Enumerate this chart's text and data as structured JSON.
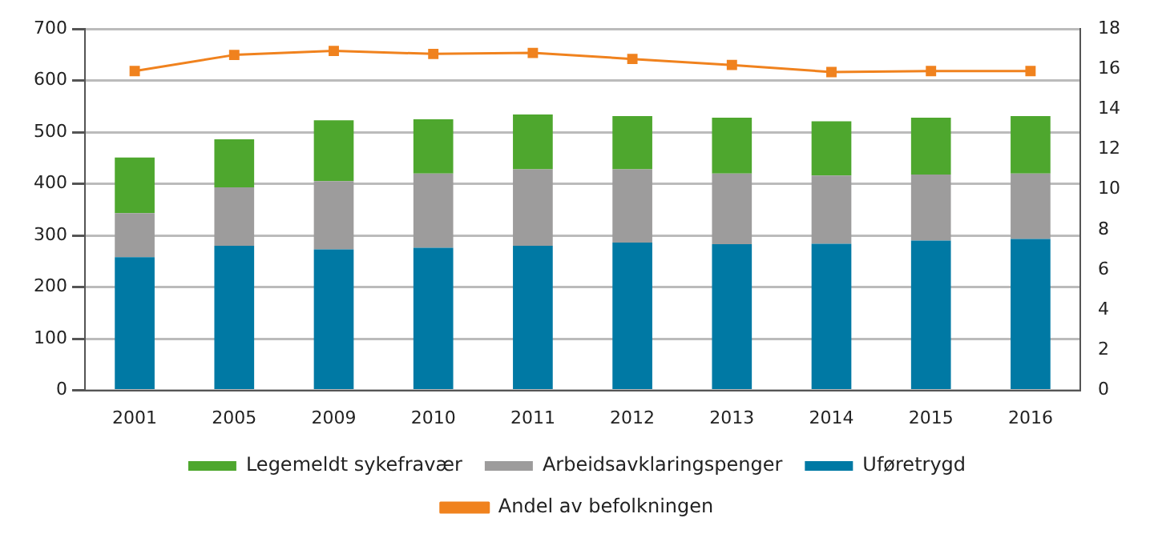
{
  "chart_data": {
    "type": "bar",
    "stacked": true,
    "categories": [
      "2001",
      "2005",
      "2009",
      "2010",
      "2011",
      "2012",
      "2013",
      "2014",
      "2015",
      "2016"
    ],
    "series": [
      {
        "name": "Uføretrygd",
        "color": "#0079a4",
        "values": [
          258,
          280,
          273,
          276,
          280,
          286,
          283,
          284,
          290,
          293
        ]
      },
      {
        "name": "Arbeidsavklaringspenger",
        "color": "#9d9c9c",
        "values": [
          85,
          113,
          132,
          144,
          148,
          142,
          137,
          132,
          128,
          127
        ]
      },
      {
        "name": "Legemeldt sykefravær",
        "color": "#4ea72e",
        "values": [
          108,
          93,
          118,
          105,
          106,
          103,
          108,
          105,
          110,
          111
        ]
      },
      {
        "name": "Andel av befolkningen",
        "type": "line",
        "axis": "y2",
        "color": "#f0821e",
        "marker": "square",
        "values": [
          15.9,
          16.7,
          16.9,
          16.75,
          16.8,
          16.5,
          16.2,
          15.85,
          15.9,
          15.9
        ]
      }
    ],
    "ylim": [
      0,
      700
    ],
    "yticks": [
      0,
      100,
      200,
      300,
      400,
      500,
      600,
      700
    ],
    "y2lim": [
      0,
      18
    ],
    "y2ticks": [
      0,
      2,
      4,
      6,
      8,
      10,
      12,
      14,
      16,
      18
    ],
    "grid": "y",
    "legend": "bottom"
  }
}
